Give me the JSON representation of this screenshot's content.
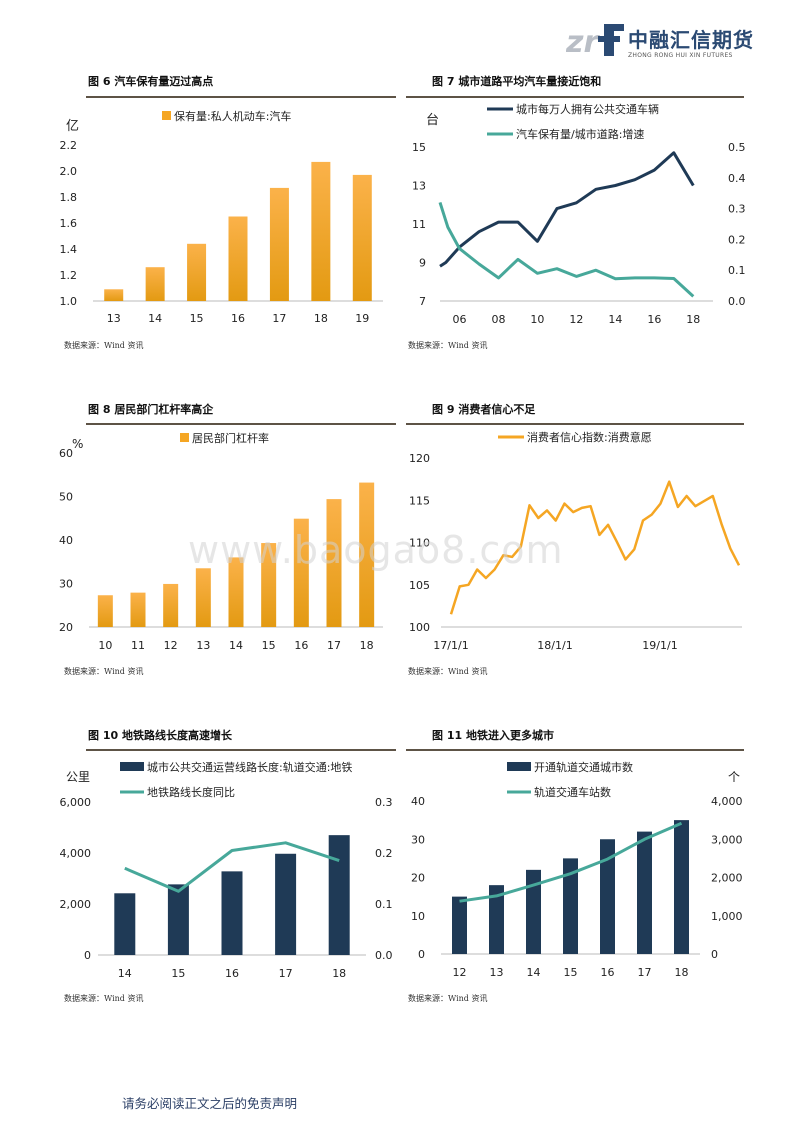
{
  "header": {
    "logo_cn": "中融汇信期货",
    "logo_en": "ZHONG RONG HUI XIN FUTURES",
    "logo_letters": "zrf"
  },
  "watermark": "www.baogao8.com",
  "footer": "请务必阅读正文之后的免责声明",
  "colors": {
    "orange": "#f5a623",
    "navy": "#1f3a56",
    "teal": "#47a89a",
    "rule": "#5d5346"
  },
  "figures": [
    {
      "title": "图 6  汽车保有量迈过高点",
      "source": "数据来源：Wind 资讯"
    },
    {
      "title": "图 7  城市道路平均汽车量接近饱和",
      "source": "数据来源：Wind 资讯"
    },
    {
      "title": "图 8  居民部门杠杆率高企",
      "source": "数据来源：Wind 资讯"
    },
    {
      "title": "图 9  消费者信心不足",
      "source": "数据来源：Wind 资讯"
    },
    {
      "title": "图 10  地铁路线长度高速增长",
      "source": "数据来源：Wind 资讯"
    },
    {
      "title": "图 11  地铁进入更多城市",
      "source": "数据来源：Wind 资讯"
    }
  ],
  "chart_data": [
    {
      "id": "c6",
      "type": "bar",
      "unit": "亿",
      "categories": [
        "13",
        "14",
        "15",
        "16",
        "17",
        "18",
        "19"
      ],
      "series": [
        {
          "name": "保有量:私人机动车:汽车",
          "values": [
            1.09,
            1.26,
            1.44,
            1.65,
            1.87,
            2.07,
            1.97
          ],
          "color": "#f5a623"
        }
      ],
      "ylim": [
        1.0,
        2.2
      ],
      "yticks": [
        "1.0",
        "1.2",
        "1.4",
        "1.6",
        "1.8",
        "2.0",
        "2.2"
      ],
      "legend": "top"
    },
    {
      "id": "c7",
      "type": "line",
      "unit_left": "台",
      "x": [
        "05",
        "06",
        "07",
        "08",
        "09",
        "10",
        "11",
        "12",
        "13",
        "14",
        "15",
        "16",
        "17",
        "18"
      ],
      "xticks": [
        "06",
        "08",
        "10",
        "12",
        "14",
        "16",
        "18"
      ],
      "series": [
        {
          "name": "城市每万人拥有公共交通车辆",
          "axis": "left",
          "color": "#1f3a56",
          "x": [
            2005,
            2005.3,
            2006,
            2007,
            2008,
            2009,
            2010,
            2011,
            2012,
            2013,
            2014,
            2015,
            2016,
            2017,
            2018
          ],
          "values": [
            8.8,
            9.0,
            9.8,
            10.6,
            11.1,
            11.1,
            10.1,
            11.8,
            12.1,
            12.8,
            13.0,
            13.3,
            13.8,
            14.7,
            13.0
          ]
        },
        {
          "name": "汽车保有量/城市道路:增速",
          "axis": "right",
          "color": "#47a89a",
          "x": [
            2005,
            2005.4,
            2006,
            2007,
            2008,
            2009,
            2010,
            2011,
            2012,
            2013,
            2014,
            2015,
            2016,
            2017,
            2018
          ],
          "values": [
            0.32,
            0.24,
            0.17,
            0.12,
            0.075,
            0.135,
            0.09,
            0.105,
            0.08,
            0.1,
            0.072,
            0.075,
            0.075,
            0.073,
            0.015
          ]
        }
      ],
      "ylim_left": [
        7,
        15
      ],
      "yticks_left": [
        "7",
        "9",
        "11",
        "13",
        "15"
      ],
      "ylim_right": [
        0.0,
        0.5
      ],
      "yticks_right": [
        "0.0",
        "0.1",
        "0.2",
        "0.3",
        "0.4",
        "0.5"
      ]
    },
    {
      "id": "c8",
      "type": "bar",
      "unit": "%",
      "categories": [
        "10",
        "11",
        "12",
        "13",
        "14",
        "15",
        "16",
        "17",
        "18"
      ],
      "series": [
        {
          "name": "居民部门杠杆率",
          "values": [
            27.3,
            27.9,
            29.9,
            33.5,
            36.0,
            39.3,
            44.9,
            49.4,
            53.2
          ],
          "color": "#f5a623"
        }
      ],
      "ylim": [
        20,
        60
      ],
      "yticks": [
        "20",
        "30",
        "40",
        "50",
        "60"
      ],
      "legend": "top"
    },
    {
      "id": "c9",
      "type": "line",
      "series": [
        {
          "name": "消费者信心指数:消费意愿",
          "color": "#f5a623",
          "values": [
            101.5,
            104.8,
            105.0,
            106.8,
            105.8,
            106.8,
            108.5,
            108.3,
            109.5,
            114.4,
            112.9,
            113.8,
            112.6,
            114.6,
            113.6,
            114.1,
            114.3,
            110.9,
            112.1,
            110.1,
            108.0,
            109.2,
            112.6,
            113.3,
            114.6,
            117.2,
            114.2,
            115.5,
            114.3,
            114.9,
            115.5,
            112.2,
            109.3,
            107.3
          ]
        }
      ],
      "xticks": [
        "17/1/1",
        "18/1/1",
        "19/1/1"
      ],
      "ylim": [
        100,
        120
      ],
      "yticks": [
        "100",
        "105",
        "110",
        "115",
        "120"
      ]
    },
    {
      "id": "c10",
      "type": "bar+line",
      "unit_left": "公里",
      "categories": [
        "14",
        "15",
        "16",
        "17",
        "18"
      ],
      "series": [
        {
          "name": "城市公共交通运营线路长度:轨道交通:地铁",
          "kind": "bar",
          "axis": "left",
          "color": "#1f3a56",
          "values": [
            2420,
            2770,
            3280,
            3970,
            4700
          ]
        },
        {
          "name": "地铁路线长度同比",
          "kind": "line",
          "axis": "right",
          "color": "#47a89a",
          "values": [
            0.17,
            0.125,
            0.205,
            0.22,
            0.185
          ]
        }
      ],
      "ylim_left": [
        0,
        6000
      ],
      "yticks_left": [
        "0",
        "2,000",
        "4,000",
        "6,000"
      ],
      "ylim_right": [
        0.0,
        0.3
      ],
      "yticks_right": [
        "0.0",
        "0.1",
        "0.2",
        "0.3"
      ]
    },
    {
      "id": "c11",
      "type": "bar+line",
      "unit_right": "个",
      "categories": [
        "12",
        "13",
        "14",
        "15",
        "16",
        "17",
        "18"
      ],
      "series": [
        {
          "name": "开通轨道交通城市数",
          "kind": "bar",
          "axis": "left",
          "color": "#1f3a56",
          "values": [
            15,
            18,
            22,
            25,
            30,
            32,
            35
          ]
        },
        {
          "name": "轨道交通车站数",
          "kind": "line",
          "axis": "right",
          "color": "#47a89a",
          "values": [
            1380,
            1520,
            1800,
            2100,
            2480,
            3000,
            3420
          ]
        }
      ],
      "ylim_left": [
        0,
        40
      ],
      "yticks_left": [
        "0",
        "10",
        "20",
        "30",
        "40"
      ],
      "ylim_right": [
        0,
        4000
      ],
      "yticks_right": [
        "0",
        "1,000",
        "2,000",
        "3,000",
        "4,000"
      ]
    }
  ]
}
